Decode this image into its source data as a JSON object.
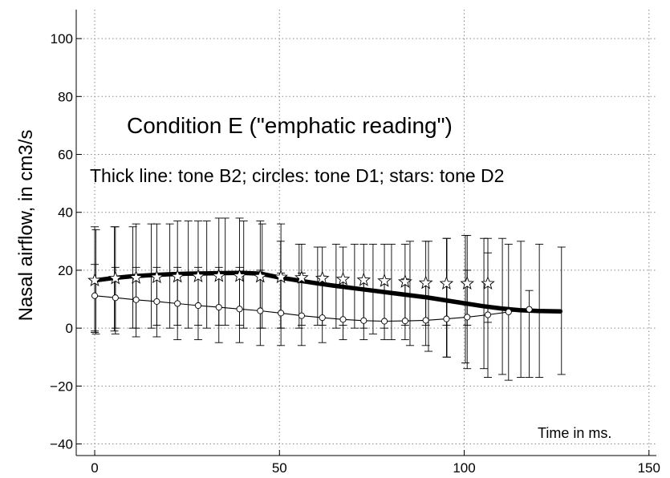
{
  "chart_data": {
    "type": "line",
    "xlabel": "Time in ms.",
    "ylabel": "Nasal airflow, in cm3/s",
    "xlim": [
      -5,
      152
    ],
    "ylim": [
      -44,
      110
    ],
    "xticks": [
      0,
      50,
      100,
      150
    ],
    "yticks": [
      -40,
      -20,
      0,
      20,
      40,
      60,
      80,
      100
    ],
    "grid": true,
    "annotations": {
      "condition": "Condition E (\"emphatic reading\")",
      "legend_note": "Thick line: tone B2; circles: tone D1; stars: tone D2"
    },
    "series": [
      {
        "marker": "star",
        "style": "markers with error bars",
        "x": [
          0,
          5.6,
          11.2,
          16.8,
          22.4,
          28,
          33.6,
          39.2,
          44.8,
          50.4,
          56,
          61.6,
          67.2,
          72.8,
          78.4,
          84,
          89.6,
          95.2,
          100.8,
          106.4
        ],
        "y": [
          16.5,
          17.2,
          17.4,
          17.6,
          17.8,
          17.9,
          18.0,
          18.0,
          17.8,
          17.6,
          17.4,
          17.2,
          16.9,
          16.6,
          16.3,
          16.0,
          15.6,
          15.4,
          15.4,
          15.4
        ],
        "err_low": [
          -1.5,
          0,
          0,
          1,
          1,
          1,
          1,
          1,
          0,
          0,
          1,
          1,
          1,
          0,
          0,
          1,
          1,
          1,
          1,
          2
        ],
        "err_high": [
          35,
          35,
          36,
          36,
          37,
          37,
          38,
          38,
          37,
          36,
          29,
          28,
          28,
          29,
          29,
          29,
          30,
          31,
          32,
          31
        ]
      },
      {
        "marker": "circle",
        "style": "thin line with error bars",
        "x": [
          0,
          5.6,
          11.2,
          16.8,
          22.4,
          28,
          33.6,
          39.2,
          44.8,
          50.4,
          56,
          61.6,
          67.2,
          72.8,
          78.4,
          84,
          89.6,
          95.2,
          100.8,
          106.4,
          112,
          117.6
        ],
        "y": [
          11.2,
          10.5,
          9.8,
          9.2,
          8.5,
          7.8,
          7.2,
          6.6,
          6.0,
          5.2,
          4.3,
          3.6,
          3.0,
          2.6,
          2.4,
          2.5,
          2.7,
          3.2,
          3.8,
          4.6,
          5.6,
          6.5
        ],
        "err_low": [
          -1,
          -2,
          -3,
          -3,
          -4,
          -4,
          -5,
          -5,
          -6,
          -6,
          -6,
          -5,
          -4,
          -4,
          -4,
          -4,
          -6,
          -10,
          -14,
          -17,
          -18,
          -17
        ],
        "err_high": [
          22,
          21,
          21,
          21,
          21,
          21,
          21,
          21,
          20,
          19,
          19,
          18,
          17,
          17,
          17,
          17,
          16,
          16,
          20,
          26,
          29,
          13
        ]
      },
      {
        "marker": "none",
        "style": "thick line",
        "x": [
          0,
          5,
          10,
          15,
          20,
          25,
          30,
          35,
          40,
          45,
          50,
          55,
          60,
          65,
          70,
          75,
          80,
          85,
          90,
          95,
          100,
          105,
          110,
          115,
          120,
          126
        ],
        "y": [
          16.5,
          17.3,
          17.9,
          18.3,
          18.6,
          18.8,
          18.9,
          19.0,
          19.1,
          18.8,
          17.5,
          16.5,
          15.5,
          14.6,
          13.8,
          13.0,
          12.2,
          11.4,
          10.6,
          9.6,
          8.6,
          7.6,
          6.8,
          6.2,
          5.9,
          5.8
        ],
        "err_low": [
          -2,
          -1,
          0,
          0,
          0,
          0,
          0,
          1,
          0,
          0,
          0,
          0,
          1,
          0,
          0,
          -2,
          -4,
          -6,
          -8,
          -10,
          -12,
          -14,
          -16,
          -17,
          -17,
          -16
        ],
        "err_high": [
          34,
          35,
          35,
          36,
          36,
          37,
          37,
          38,
          37,
          36,
          30,
          29,
          28,
          29,
          29,
          29,
          29,
          30,
          30,
          31,
          32,
          31,
          31,
          30,
          29,
          28
        ]
      }
    ]
  }
}
